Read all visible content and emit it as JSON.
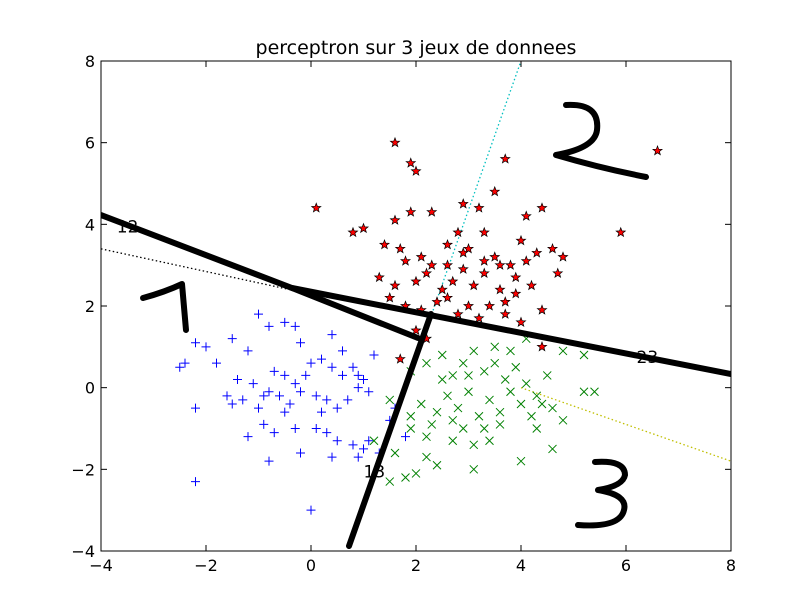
{
  "chart_data": {
    "type": "scatter",
    "title": "perceptron sur 3 jeux de donnees",
    "xlabel": "",
    "ylabel": "",
    "xlim": [
      -4,
      8
    ],
    "ylim": [
      -4,
      8
    ],
    "x_ticks": [
      "-4",
      "-2",
      "0",
      "2",
      "4",
      "6",
      "8"
    ],
    "y_ticks": [
      "-4",
      "-2",
      "0",
      "2",
      "4",
      "6",
      "8"
    ],
    "grid": false,
    "legend": "none",
    "series": [
      {
        "marker": "plus",
        "color": "#0000ff",
        "points": [
          [
            -2.4,
            0.6
          ],
          [
            -2.5,
            0.5
          ],
          [
            -2.2,
            1.1
          ],
          [
            -2.0,
            1.0
          ],
          [
            -1.8,
            0.6
          ],
          [
            -1.5,
            1.2
          ],
          [
            -1.4,
            0.2
          ],
          [
            -1.2,
            0.9
          ],
          [
            -1.0,
            1.8
          ],
          [
            -0.8,
            1.5
          ],
          [
            -0.5,
            1.6
          ],
          [
            -0.3,
            1.5
          ],
          [
            -0.2,
            1.1
          ],
          [
            0.4,
            1.3
          ],
          [
            -1.1,
            0.1
          ],
          [
            -0.9,
            -0.2
          ],
          [
            -0.7,
            0.4
          ],
          [
            -0.5,
            0.3
          ],
          [
            -0.3,
            0.1
          ],
          [
            0.0,
            0.6
          ],
          [
            0.2,
            0.7
          ],
          [
            0.4,
            0.5
          ],
          [
            0.6,
            0.3
          ],
          [
            0.8,
            0.5
          ],
          [
            0.9,
            0.3
          ],
          [
            1.0,
            0.2
          ],
          [
            -1.5,
            -0.4
          ],
          [
            -1.3,
            -0.3
          ],
          [
            -1.0,
            -0.5
          ],
          [
            -0.8,
            -0.1
          ],
          [
            -0.6,
            -0.2
          ],
          [
            -0.4,
            -0.4
          ],
          [
            -0.2,
            -0.1
          ],
          [
            0.1,
            -0.2
          ],
          [
            0.3,
            -0.3
          ],
          [
            0.5,
            -0.5
          ],
          [
            0.7,
            -0.3
          ],
          [
            0.9,
            0.0
          ],
          [
            1.1,
            -0.1
          ],
          [
            -1.2,
            -1.2
          ],
          [
            -0.9,
            -0.9
          ],
          [
            -0.7,
            -1.1
          ],
          [
            -0.3,
            -1.0
          ],
          [
            0.1,
            -1.0
          ],
          [
            0.3,
            -1.1
          ],
          [
            0.5,
            -1.3
          ],
          [
            0.8,
            -1.4
          ],
          [
            1.0,
            -1.5
          ],
          [
            1.3,
            -1.6
          ],
          [
            -0.8,
            -1.8
          ],
          [
            -0.2,
            -1.6
          ],
          [
            0.4,
            -1.7
          ],
          [
            0.9,
            -1.7
          ],
          [
            -2.2,
            -0.5
          ],
          [
            -2.2,
            -2.3
          ],
          [
            0.0,
            -3.0
          ],
          [
            1.1,
            -1.3
          ],
          [
            1.5,
            -0.8
          ],
          [
            1.6,
            -0.5
          ],
          [
            1.8,
            -1.2
          ],
          [
            -0.1,
            0.3
          ],
          [
            0.2,
            -0.6
          ],
          [
            -0.5,
            -0.6
          ],
          [
            -1.6,
            -0.2
          ],
          [
            0.6,
            0.9
          ],
          [
            1.2,
            0.8
          ]
        ]
      },
      {
        "marker": "x",
        "color": "#008000",
        "points": [
          [
            1.5,
            -0.3
          ],
          [
            1.9,
            0.4
          ],
          [
            2.2,
            0.6
          ],
          [
            2.5,
            0.8
          ],
          [
            2.7,
            0.3
          ],
          [
            2.9,
            0.6
          ],
          [
            3.1,
            0.9
          ],
          [
            3.3,
            0.4
          ],
          [
            3.5,
            0.6
          ],
          [
            3.7,
            0.2
          ],
          [
            3.9,
            0.5
          ],
          [
            4.1,
            0.1
          ],
          [
            4.3,
            -0.2
          ],
          [
            4.5,
            0.3
          ],
          [
            4.8,
            0.9
          ],
          [
            5.2,
            0.8
          ],
          [
            5.4,
            -0.1
          ],
          [
            2.1,
            -0.4
          ],
          [
            2.4,
            -0.6
          ],
          [
            2.6,
            -0.2
          ],
          [
            2.8,
            -0.5
          ],
          [
            3.0,
            -0.1
          ],
          [
            3.2,
            -0.7
          ],
          [
            3.4,
            -0.3
          ],
          [
            3.6,
            -0.6
          ],
          [
            3.8,
            -0.1
          ],
          [
            4.0,
            -0.4
          ],
          [
            4.2,
            -0.7
          ],
          [
            4.6,
            -0.5
          ],
          [
            4.8,
            -0.8
          ],
          [
            5.2,
            -0.1
          ],
          [
            1.6,
            -1.6
          ],
          [
            1.9,
            -1.0
          ],
          [
            2.2,
            -1.2
          ],
          [
            2.4,
            -1.9
          ],
          [
            2.7,
            -1.3
          ],
          [
            2.9,
            -1.0
          ],
          [
            3.1,
            -1.4
          ],
          [
            3.4,
            -1.3
          ],
          [
            3.6,
            -0.9
          ],
          [
            4.0,
            -1.8
          ],
          [
            4.3,
            -1.0
          ],
          [
            4.6,
            -1.5
          ],
          [
            1.5,
            -2.3
          ],
          [
            1.8,
            -2.2
          ],
          [
            2.0,
            -2.1
          ],
          [
            2.2,
            -1.7
          ],
          [
            3.1,
            -2.0
          ],
          [
            1.9,
            -0.7
          ],
          [
            2.5,
            0.2
          ],
          [
            3.0,
            0.3
          ],
          [
            3.5,
            1.0
          ],
          [
            4.1,
            1.2
          ],
          [
            2.3,
            -0.9
          ],
          [
            3.8,
            0.9
          ],
          [
            1.2,
            -1.3
          ],
          [
            4.4,
            -0.4
          ],
          [
            3.3,
            -1.0
          ],
          [
            2.7,
            -0.8
          ]
        ]
      },
      {
        "marker": "star",
        "color": "#ff0000",
        "points": [
          [
            1.6,
            6.0
          ],
          [
            1.9,
            5.5
          ],
          [
            2.0,
            5.3
          ],
          [
            3.7,
            5.6
          ],
          [
            6.6,
            5.8
          ],
          [
            0.1,
            4.4
          ],
          [
            1.0,
            3.9
          ],
          [
            1.6,
            4.1
          ],
          [
            1.9,
            4.3
          ],
          [
            2.3,
            4.3
          ],
          [
            2.9,
            4.5
          ],
          [
            3.2,
            4.4
          ],
          [
            3.5,
            4.8
          ],
          [
            4.1,
            4.2
          ],
          [
            4.4,
            4.4
          ],
          [
            0.8,
            3.8
          ],
          [
            1.4,
            3.5
          ],
          [
            1.7,
            3.4
          ],
          [
            2.1,
            3.2
          ],
          [
            2.3,
            3.0
          ],
          [
            2.6,
            3.5
          ],
          [
            2.8,
            3.8
          ],
          [
            3.0,
            3.4
          ],
          [
            3.3,
            3.8
          ],
          [
            3.5,
            3.2
          ],
          [
            3.8,
            3.0
          ],
          [
            4.0,
            3.6
          ],
          [
            4.3,
            3.3
          ],
          [
            4.6,
            3.4
          ],
          [
            5.9,
            3.8
          ],
          [
            1.3,
            2.7
          ],
          [
            1.6,
            2.5
          ],
          [
            2.0,
            2.6
          ],
          [
            2.2,
            2.8
          ],
          [
            2.5,
            2.4
          ],
          [
            2.7,
            2.6
          ],
          [
            2.9,
            2.9
          ],
          [
            3.1,
            2.5
          ],
          [
            3.3,
            2.8
          ],
          [
            3.6,
            2.4
          ],
          [
            3.9,
            2.7
          ],
          [
            4.2,
            2.5
          ],
          [
            4.7,
            2.8
          ],
          [
            1.5,
            2.2
          ],
          [
            1.8,
            2.0
          ],
          [
            2.1,
            1.9
          ],
          [
            2.4,
            2.1
          ],
          [
            2.6,
            2.2
          ],
          [
            2.8,
            1.8
          ],
          [
            3.0,
            2.0
          ],
          [
            3.2,
            1.7
          ],
          [
            3.4,
            2.0
          ],
          [
            3.7,
            2.1
          ],
          [
            4.0,
            1.6
          ],
          [
            4.4,
            1.9
          ],
          [
            4.4,
            1.0
          ],
          [
            1.7,
            0.7
          ],
          [
            2.2,
            1.2
          ],
          [
            3.7,
            1.8
          ],
          [
            4.1,
            3.1
          ],
          [
            3.6,
            3.0
          ],
          [
            2.6,
            3.0
          ],
          [
            3.3,
            3.1
          ],
          [
            2.0,
            1.4
          ],
          [
            1.8,
            3.1
          ],
          [
            2.9,
            3.3
          ],
          [
            4.8,
            3.2
          ],
          [
            3.9,
            2.3
          ]
        ]
      }
    ],
    "separator_lines": [
      {
        "color": "#000000",
        "style": "dotted",
        "points": [
          [
            -4.0,
            3.4
          ],
          [
            -0.4,
            2.4
          ]
        ]
      },
      {
        "color": "#00bfbf",
        "style": "dotted",
        "points": [
          [
            2.3,
            1.8
          ],
          [
            4.0,
            8.0
          ]
        ]
      },
      {
        "color": "#bfbf00",
        "style": "dotted",
        "points": [
          [
            4.0,
            0.0
          ],
          [
            8.0,
            -1.8
          ]
        ]
      }
    ],
    "annotations": [
      {
        "text": "12",
        "x": -3.7,
        "y": 3.8
      },
      {
        "text": "23",
        "x": 6.2,
        "y": 0.6
      },
      {
        "text": "13",
        "x": 1.0,
        "y": -2.2
      }
    ],
    "handwritten_overlay": {
      "description": "thick black hand-drawn lines dividing the plane into regions labelled 1, 2, 3",
      "color": "#000000"
    }
  }
}
